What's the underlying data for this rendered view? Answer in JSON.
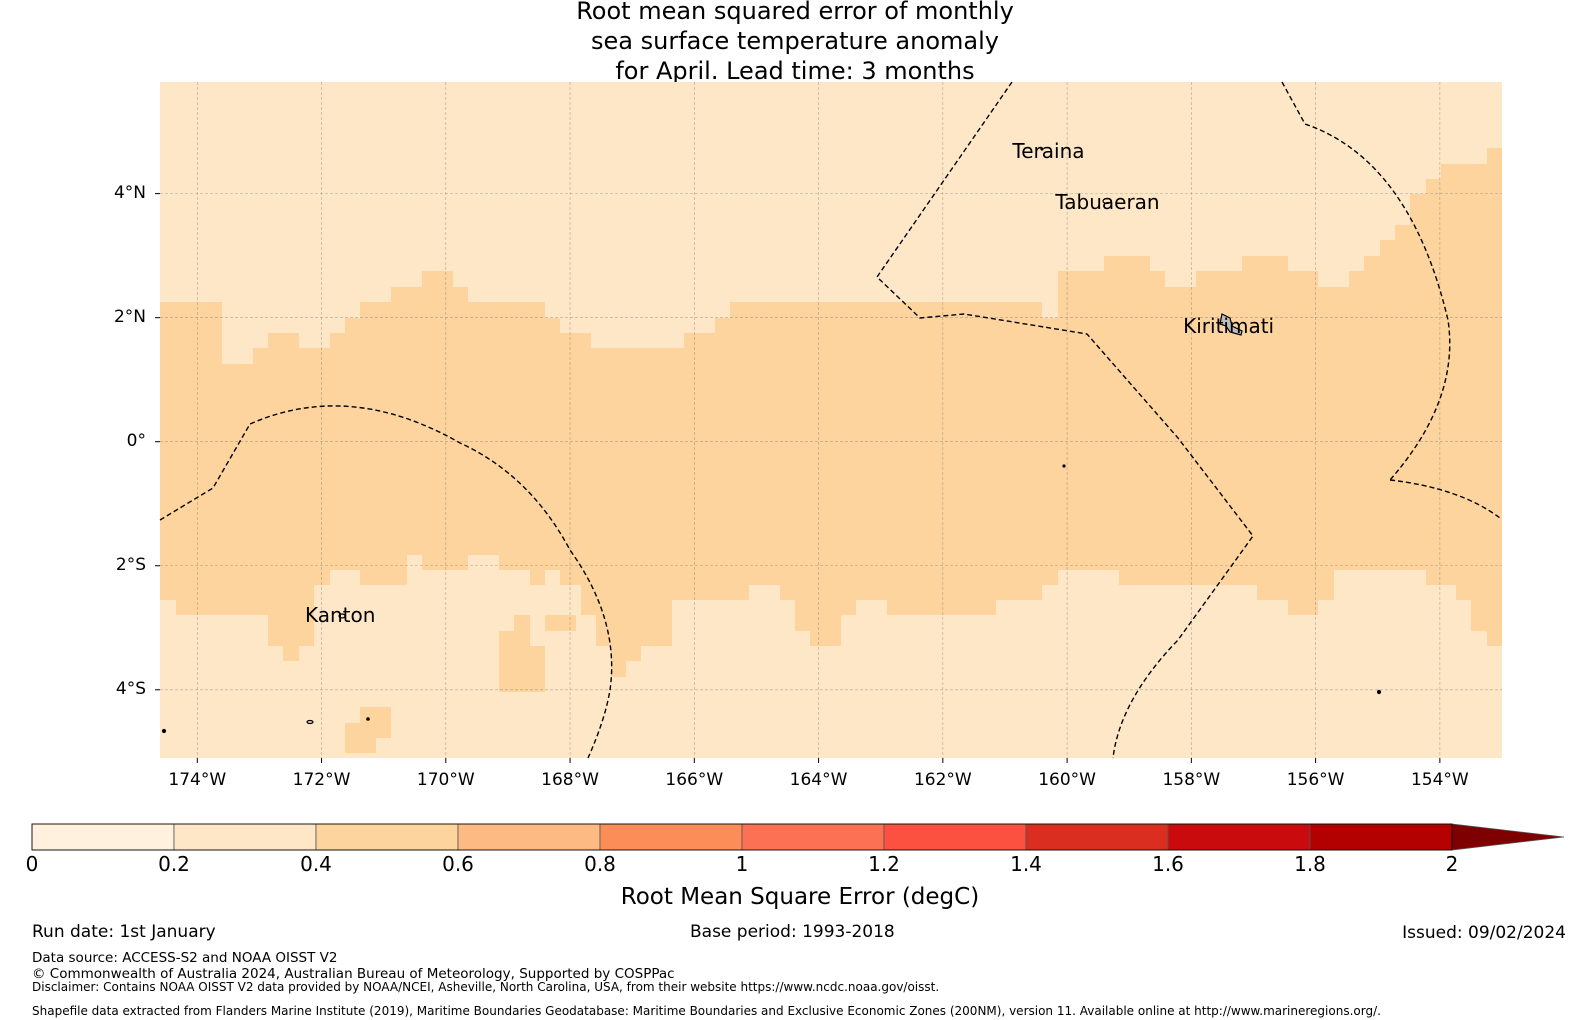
{
  "title_lines": [
    "Root mean squared error of monthly",
    "sea surface temperature anomaly",
    "for April. Lead time: 3 months"
  ],
  "map": {
    "lon_ticks": [
      "174°W",
      "172°W",
      "170°W",
      "168°W",
      "166°W",
      "164°W",
      "162°W",
      "160°W",
      "158°W",
      "156°W",
      "154°W"
    ],
    "lat_ticks": [
      "4°N",
      "2°N",
      "0°",
      "2°S",
      "4°S"
    ],
    "places": [
      {
        "name": "Teraina",
        "lon": -160.3,
        "lat": 4.68
      },
      {
        "name": "Tabuaeran",
        "lon": -159.35,
        "lat": 3.86
      },
      {
        "name": "Kiritimati",
        "lon": -157.4,
        "lat": 1.87
      },
      {
        "name": "Kanton",
        "lon": -171.7,
        "lat": -2.8
      }
    ],
    "fill_colors": {
      "low": "#fee7c7",
      "high": "#fdd49d"
    }
  },
  "colorbar": {
    "label": "Root Mean Square Error (degC)",
    "ticks": [
      "0",
      "0.2",
      "0.4",
      "0.6",
      "0.8",
      "1",
      "1.2",
      "1.4",
      "1.6",
      "1.8",
      "2"
    ],
    "colors": [
      "#fff1de",
      "#fee7c7",
      "#fdd49d",
      "#fdbb83",
      "#fc8d59",
      "#fc7153",
      "#fc5140",
      "#d92e20",
      "#c90b0e",
      "#b30000",
      "#7f0000"
    ]
  },
  "footer": {
    "run_date": "Run date: 1st January",
    "base_period": "Base period: 1993-2018",
    "issued": "Issued: 09/02/2024",
    "data_source": "Data source: ACCESS-S2 and NOAA OISST V2",
    "copyright": "© Commonwealth of Australia 2024, Australian Bureau of Meteorology, Supported by COSPPac",
    "disclaimer": "Disclaimer: Contains NOAA OISST V2 data provided by NOAA/NCEI, Asheville, North Carolina, USA, from their website https://www.ncdc.noaa.gov/oisst.",
    "shapefile": "Shapefile data extracted from Flanders Marine Institute (2019), Maritime Boundaries Geodatabase: Maritime Boundaries and Exclusive Economic Zones (200NM), version 11. Available online at http://www.marineregions.org/."
  }
}
